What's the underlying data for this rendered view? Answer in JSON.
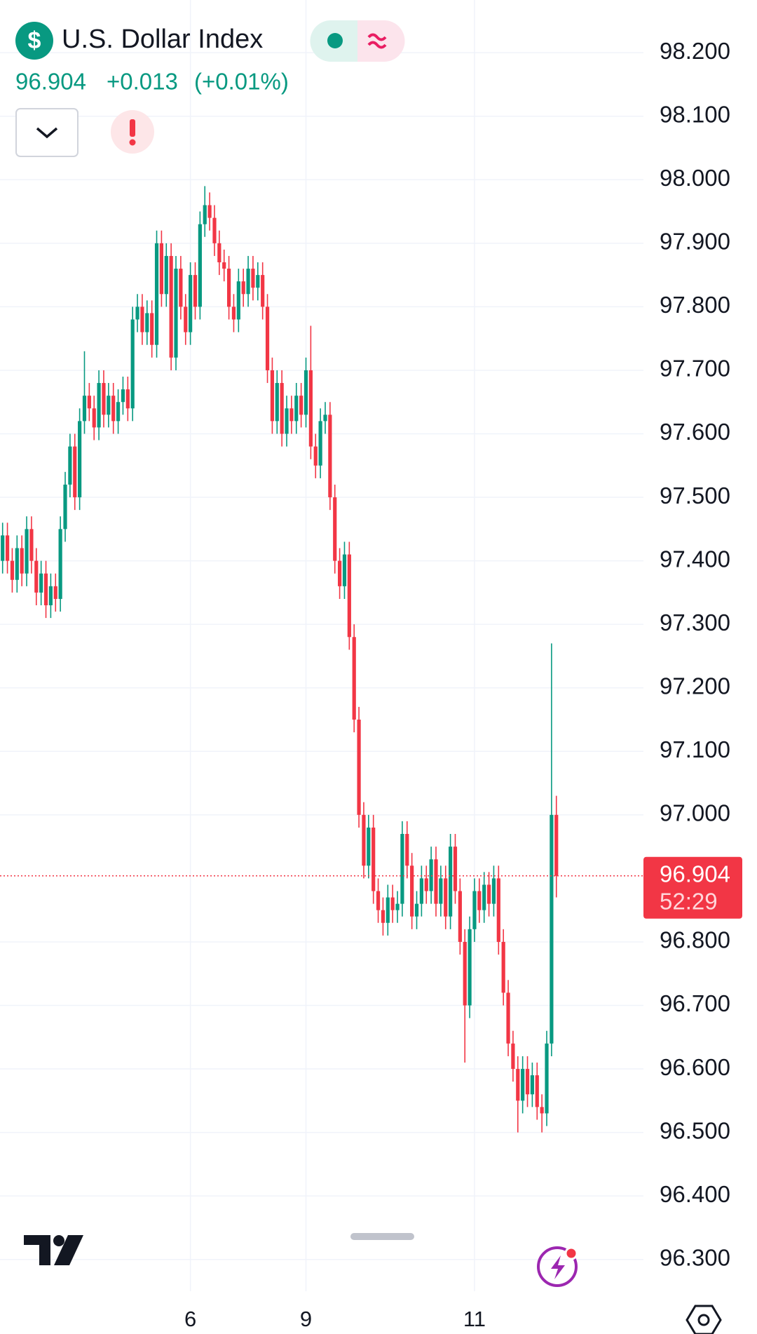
{
  "header": {
    "logo_symbol": "$",
    "title": "U.S. Dollar Index",
    "price": 96.904,
    "change": "+0.013",
    "change_pct": "(+0.01%)"
  },
  "chart_data": {
    "type": "candlestick",
    "up_color": "#089981",
    "down_color": "#f23645",
    "grid": true,
    "ylim": [
      96.25,
      98.283
    ],
    "yticks": [
      {
        "value": 96.3,
        "label": "96.300"
      },
      {
        "value": 96.4,
        "label": "96.400"
      },
      {
        "value": 96.5,
        "label": "96.500"
      },
      {
        "value": 96.6,
        "label": "96.600"
      },
      {
        "value": 96.7,
        "label": "96.700"
      },
      {
        "value": 96.8,
        "label": "96.800"
      },
      {
        "value": 97.0,
        "label": "97.000"
      },
      {
        "value": 97.1,
        "label": "97.100"
      },
      {
        "value": 97.2,
        "label": "97.200"
      },
      {
        "value": 97.3,
        "label": "97.300"
      },
      {
        "value": 97.4,
        "label": "97.400"
      },
      {
        "value": 97.5,
        "label": "97.500"
      },
      {
        "value": 97.6,
        "label": "97.600"
      },
      {
        "value": 97.7,
        "label": "97.700"
      },
      {
        "value": 97.8,
        "label": "97.800"
      },
      {
        "value": 97.9,
        "label": "97.900"
      },
      {
        "value": 98.0,
        "label": "98.000"
      },
      {
        "value": 98.1,
        "label": "98.100"
      },
      {
        "value": 98.2,
        "label": "98.200"
      }
    ],
    "last_price": 96.904,
    "countdown": "52:29",
    "categories": [
      null,
      null,
      null,
      null,
      null,
      null,
      null,
      null,
      null,
      null,
      null,
      null,
      null,
      null,
      null,
      null,
      null,
      null,
      null,
      null,
      null,
      null,
      null,
      null,
      null,
      null,
      null,
      null,
      null,
      null,
      null,
      null,
      null,
      null,
      null,
      null,
      null,
      null,
      null,
      "6",
      null,
      null,
      null,
      null,
      null,
      null,
      null,
      null,
      null,
      null,
      null,
      null,
      null,
      null,
      null,
      null,
      null,
      null,
      null,
      null,
      null,
      null,
      null,
      "9",
      null,
      null,
      null,
      null,
      null,
      null,
      null,
      null,
      null,
      null,
      null,
      null,
      null,
      null,
      null,
      null,
      null,
      null,
      null,
      null,
      null,
      null,
      null,
      null,
      null,
      null,
      null,
      null,
      null,
      null,
      null,
      null,
      null,
      null,
      "11",
      null,
      null,
      null,
      null,
      null,
      null,
      null,
      null,
      null,
      null,
      null,
      null,
      null,
      null,
      null,
      null,
      null
    ],
    "open": [
      97.4,
      97.44,
      97.4,
      97.37,
      97.42,
      97.38,
      97.45,
      97.4,
      97.35,
      97.38,
      97.33,
      97.36,
      97.34,
      97.45,
      97.52,
      97.58,
      97.5,
      97.62,
      97.66,
      97.64,
      97.61,
      97.68,
      97.63,
      97.66,
      97.62,
      97.65,
      97.67,
      97.64,
      97.78,
      97.8,
      97.76,
      97.79,
      97.74,
      97.9,
      97.82,
      97.88,
      97.72,
      97.86,
      97.8,
      97.76,
      97.85,
      97.8,
      97.93,
      97.96,
      97.94,
      97.9,
      97.87,
      97.86,
      97.8,
      97.78,
      97.84,
      97.82,
      97.86,
      97.83,
      97.85,
      97.8,
      97.7,
      97.62,
      97.68,
      97.6,
      97.64,
      97.62,
      97.66,
      97.63,
      97.7,
      97.58,
      97.55,
      97.62,
      97.63,
      97.5,
      97.4,
      97.36,
      97.41,
      97.28,
      97.15,
      97.0,
      96.92,
      96.98,
      96.88,
      96.85,
      96.83,
      96.87,
      96.85,
      96.86,
      96.97,
      96.92,
      96.84,
      96.86,
      96.9,
      96.88,
      96.93,
      96.86,
      96.9,
      96.84,
      96.95,
      96.88,
      96.8,
      96.7,
      96.82,
      96.88,
      96.85,
      96.89,
      96.86,
      96.9,
      96.8,
      96.72,
      96.64,
      96.6,
      96.55,
      96.6,
      96.56,
      96.59,
      96.54,
      96.53,
      96.64,
      97.0
    ],
    "high": [
      97.46,
      97.46,
      97.42,
      97.44,
      97.44,
      97.47,
      97.47,
      97.42,
      97.4,
      97.4,
      97.38,
      97.38,
      97.47,
      97.54,
      97.6,
      97.6,
      97.64,
      97.73,
      97.68,
      97.66,
      97.7,
      97.7,
      97.68,
      97.68,
      97.67,
      97.69,
      97.69,
      97.8,
      97.82,
      97.82,
      97.81,
      97.81,
      97.92,
      97.92,
      97.9,
      97.9,
      97.88,
      97.88,
      97.82,
      97.87,
      97.87,
      97.95,
      97.99,
      97.98,
      97.96,
      97.92,
      97.89,
      97.88,
      97.82,
      97.86,
      97.86,
      97.88,
      97.88,
      97.87,
      97.87,
      97.82,
      97.72,
      97.7,
      97.7,
      97.66,
      97.66,
      97.68,
      97.68,
      97.72,
      97.77,
      97.6,
      97.64,
      97.65,
      97.65,
      97.52,
      97.42,
      97.43,
      97.43,
      97.3,
      97.17,
      97.02,
      97.0,
      97.0,
      96.9,
      96.87,
      96.89,
      96.89,
      96.88,
      96.99,
      96.99,
      96.94,
      96.88,
      96.92,
      96.92,
      96.95,
      96.95,
      96.92,
      96.92,
      96.97,
      96.97,
      96.9,
      96.82,
      96.84,
      96.9,
      96.9,
      96.91,
      96.91,
      96.92,
      96.92,
      96.82,
      96.74,
      96.66,
      96.62,
      96.62,
      96.62,
      96.61,
      96.61,
      96.56,
      96.66,
      97.27,
      97.03
    ],
    "low": [
      97.38,
      97.38,
      97.35,
      97.35,
      97.36,
      97.36,
      97.38,
      97.33,
      97.33,
      97.31,
      97.31,
      97.32,
      97.32,
      97.43,
      97.5,
      97.48,
      97.48,
      97.6,
      97.62,
      97.59,
      97.59,
      97.61,
      97.61,
      97.6,
      97.6,
      97.63,
      97.62,
      97.62,
      97.76,
      97.74,
      97.74,
      97.72,
      97.72,
      97.8,
      97.8,
      97.7,
      97.7,
      97.78,
      97.74,
      97.74,
      97.78,
      97.78,
      97.91,
      97.92,
      97.88,
      97.85,
      97.84,
      97.78,
      97.76,
      97.76,
      97.8,
      97.8,
      97.81,
      97.81,
      97.78,
      97.68,
      97.6,
      97.6,
      97.58,
      97.58,
      97.6,
      97.6,
      97.61,
      97.61,
      97.56,
      97.53,
      97.53,
      97.6,
      97.48,
      97.38,
      97.34,
      97.34,
      97.26,
      97.13,
      96.98,
      96.9,
      96.9,
      96.86,
      96.83,
      96.81,
      96.81,
      96.83,
      96.83,
      96.84,
      96.9,
      96.82,
      96.82,
      96.84,
      96.86,
      96.86,
      96.84,
      96.84,
      96.82,
      96.82,
      96.86,
      96.78,
      96.61,
      96.68,
      96.8,
      96.83,
      96.83,
      96.84,
      96.84,
      96.78,
      96.7,
      96.62,
      96.58,
      96.5,
      96.53,
      96.54,
      96.54,
      96.52,
      96.5,
      96.51,
      96.62,
      96.87
    ],
    "close": [
      97.44,
      97.4,
      97.37,
      97.42,
      97.38,
      97.45,
      97.4,
      97.35,
      97.38,
      97.33,
      97.36,
      97.34,
      97.45,
      97.52,
      97.58,
      97.5,
      97.62,
      97.66,
      97.64,
      97.61,
      97.68,
      97.63,
      97.66,
      97.62,
      97.65,
      97.67,
      97.64,
      97.78,
      97.8,
      97.76,
      97.79,
      97.74,
      97.9,
      97.82,
      97.88,
      97.72,
      97.86,
      97.8,
      97.76,
      97.85,
      97.8,
      97.93,
      97.96,
      97.94,
      97.9,
      97.87,
      97.86,
      97.8,
      97.78,
      97.84,
      97.82,
      97.86,
      97.83,
      97.85,
      97.8,
      97.7,
      97.62,
      97.68,
      97.6,
      97.64,
      97.62,
      97.66,
      97.63,
      97.7,
      97.58,
      97.55,
      97.62,
      97.63,
      97.5,
      97.4,
      97.36,
      97.41,
      97.28,
      97.15,
      97.0,
      96.92,
      96.98,
      96.88,
      96.85,
      96.83,
      96.87,
      96.85,
      96.86,
      96.97,
      96.92,
      96.84,
      96.86,
      96.9,
      96.88,
      96.93,
      96.86,
      96.9,
      96.84,
      96.95,
      96.88,
      96.8,
      96.7,
      96.82,
      96.88,
      96.85,
      96.89,
      96.86,
      96.9,
      96.8,
      96.72,
      96.64,
      96.6,
      96.55,
      96.6,
      96.56,
      96.59,
      96.54,
      96.53,
      96.64,
      97.0,
      96.904
    ]
  }
}
